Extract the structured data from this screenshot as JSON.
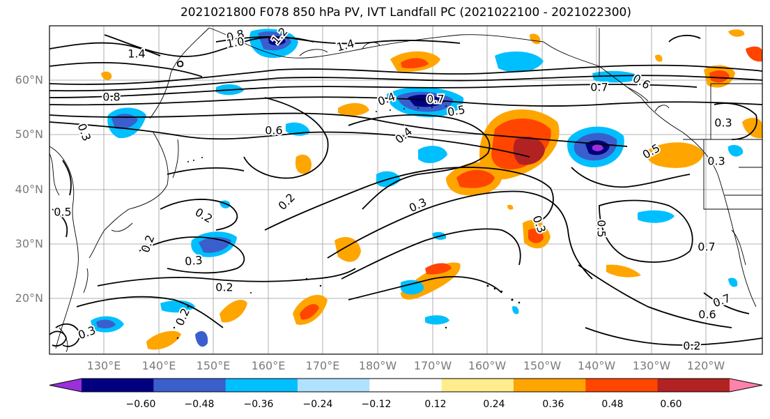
{
  "title": "2021021800 F078 850 hPa PV, IVT Landfall PC (2021022100 - 2021022300)",
  "lat_labels": [
    "60°N",
    "50°N",
    "40°N",
    "30°N",
    "20°N"
  ],
  "lon_labels": [
    "130°E",
    "140°E",
    "150°E",
    "160°E",
    "170°E",
    "180°W",
    "170°W",
    "160°W",
    "150°W",
    "140°W",
    "130°W",
    "120°W"
  ],
  "contour_labels": [
    "0.8",
    "1.0",
    "1.2",
    "1.4",
    "1.4",
    "0.8",
    "0.6",
    "0.4",
    "0.7",
    "0.5",
    "0.4",
    "0.7",
    "0.6",
    "0.5",
    "0.3",
    "0.3",
    "0.3",
    "0.2",
    "0.5",
    "0.2",
    "0.3",
    "0.2",
    "0.3",
    "0.2",
    "0.2",
    "0.3",
    "0.5",
    "0.7",
    "0.6",
    "0.2",
    "0.7",
    "0.3"
  ],
  "colorbar": {
    "levels": [
      "−0.60",
      "−0.48",
      "−0.36",
      "−0.24",
      "−0.12",
      "0.12",
      "0.24",
      "0.36",
      "0.48",
      "0.60"
    ],
    "colors": [
      "#9b30d9",
      "#000080",
      "#3a5fcd",
      "#00bfff",
      "#b0e2ff",
      "#ffffff",
      "#ffec8b",
      "#ffa500",
      "#ff4500",
      "#b22222",
      "#ff82ab"
    ]
  }
}
